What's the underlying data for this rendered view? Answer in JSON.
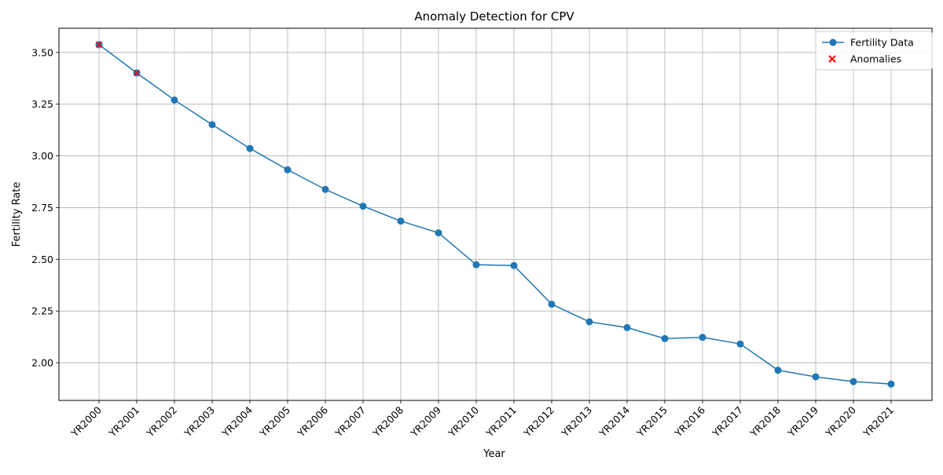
{
  "chart_data": {
    "type": "line",
    "title": "Anomaly Detection for CPV",
    "xlabel": "Year",
    "ylabel": "Fertility Rate",
    "categories": [
      "YR2000",
      "YR2001",
      "YR2002",
      "YR2003",
      "YR2004",
      "YR2005",
      "YR2006",
      "YR2007",
      "YR2008",
      "YR2009",
      "YR2010",
      "YR2011",
      "YR2012",
      "YR2013",
      "YR2014",
      "YR2015",
      "YR2016",
      "YR2017",
      "YR2018",
      "YR2019",
      "YR2020",
      "YR2021"
    ],
    "series": [
      {
        "name": "Fertility Data",
        "color": "#1f77b4",
        "marker": "circle",
        "values": [
          3.538,
          3.401,
          3.27,
          3.151,
          3.036,
          2.933,
          2.838,
          2.757,
          2.685,
          2.628,
          2.474,
          2.47,
          2.283,
          2.198,
          2.17,
          2.117,
          2.123,
          2.091,
          1.964,
          1.932,
          1.909,
          1.897
        ]
      },
      {
        "name": "Anomalies",
        "color": "#ff0000",
        "marker": "x",
        "style": "scatter",
        "points": [
          {
            "x": "YR2000",
            "y": 3.538
          },
          {
            "x": "YR2001",
            "y": 3.401
          }
        ]
      }
    ],
    "ylim": [
      1.818,
      3.617
    ],
    "yticks": [
      "2.00",
      "2.25",
      "2.50",
      "2.75",
      "3.00",
      "3.25",
      "3.50"
    ],
    "grid": true,
    "legend_position": "top-right"
  }
}
